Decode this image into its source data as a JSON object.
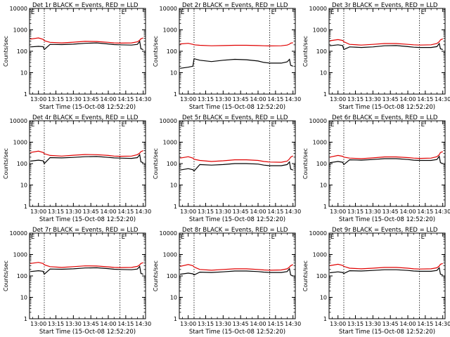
{
  "figure": {
    "xlabel": "Start Time (15-Oct-08 12:52:20)",
    "ylabel": "Counts/sec",
    "marker_label": "E"
  },
  "chart_data": [
    {
      "type": "line",
      "title": "Det 1r BLACK = Events, RED = LLD",
      "xlabel": "Start Time (15-Oct-08 12:52:20)",
      "ylabel": "Counts/sec",
      "y_scale": "log",
      "ylim": [
        1,
        10000
      ],
      "y_ticks": [
        "1",
        "10",
        "100",
        "1000",
        "10000"
      ],
      "x_ticks": [
        "13:00",
        "13:15",
        "13:30",
        "13:45",
        "14:00",
        "14:15",
        "14:30"
      ],
      "xlim": [
        "12:52:20",
        "14:32:00"
      ],
      "vertical_markers": [
        "13:05",
        "14:10"
      ],
      "x": [
        "12:53",
        "13:00",
        "13:04",
        "13:05",
        "13:10",
        "13:20",
        "13:30",
        "13:40",
        "13:50",
        "14:00",
        "14:05",
        "14:10",
        "14:20",
        "14:25",
        "14:27",
        "14:28",
        "14:30"
      ],
      "series": [
        {
          "color": "#000000",
          "values": [
            160,
            170,
            165,
            120,
            210,
            205,
            215,
            235,
            245,
            220,
            205,
            200,
            195,
            210,
            290,
            130,
            120
          ]
        },
        {
          "color": "#e00000",
          "values": [
            370,
            420,
            360,
            310,
            260,
            245,
            265,
            290,
            285,
            260,
            245,
            240,
            245,
            275,
            330,
            380,
            420
          ]
        }
      ]
    },
    {
      "type": "line",
      "title": "Det 2r BLACK = Events, RED = LLD",
      "xlabel": "Start Time (15-Oct-08 12:52:20)",
      "ylabel": "Counts/sec",
      "y_scale": "log",
      "ylim": [
        1,
        10000
      ],
      "y_ticks": [
        "1",
        "10",
        "100",
        "1000",
        "10000"
      ],
      "x_ticks": [
        "13:00",
        "13:15",
        "13:30",
        "13:45",
        "14:00",
        "14:15",
        "14:30"
      ],
      "xlim": [
        "12:52:20",
        "14:32:00"
      ],
      "vertical_markers": [
        "13:05",
        "14:10"
      ],
      "x": [
        "12:53",
        "13:00",
        "13:04",
        "13:05",
        "13:10",
        "13:20",
        "13:30",
        "13:40",
        "13:50",
        "14:00",
        "14:05",
        "14:10",
        "14:20",
        "14:25",
        "14:27",
        "14:28",
        "14:30"
      ],
      "series": [
        {
          "color": "#000000",
          "values": [
            16,
            18,
            20,
            45,
            38,
            33,
            38,
            42,
            40,
            35,
            30,
            28,
            28,
            32,
            42,
            22,
            20
          ]
        },
        {
          "color": "#e00000",
          "values": [
            220,
            235,
            210,
            200,
            190,
            180,
            185,
            190,
            190,
            185,
            180,
            178,
            180,
            195,
            215,
            240,
            250
          ]
        }
      ]
    },
    {
      "type": "line",
      "title": "Det 3r BLACK = Events, RED = LLD",
      "xlabel": "Start Time (15-Oct-08 12:52:20)",
      "ylabel": "Counts/sec",
      "y_scale": "log",
      "ylim": [
        1,
        10000
      ],
      "y_ticks": [
        "1",
        "10",
        "100",
        "1000",
        "10000"
      ],
      "x_ticks": [
        "13:00",
        "13:15",
        "13:30",
        "13:45",
        "14:00",
        "14:15",
        "14:30"
      ],
      "xlim": [
        "12:52:20",
        "14:32:00"
      ],
      "vertical_markers": [
        "13:05",
        "14:10"
      ],
      "x": [
        "12:53",
        "13:00",
        "13:04",
        "13:05",
        "13:10",
        "13:20",
        "13:30",
        "13:40",
        "13:50",
        "14:00",
        "14:05",
        "14:10",
        "14:20",
        "14:25",
        "14:27",
        "14:28",
        "14:30"
      ],
      "series": [
        {
          "color": "#000000",
          "values": [
            180,
            200,
            185,
            120,
            160,
            150,
            160,
            180,
            185,
            165,
            155,
            150,
            150,
            165,
            230,
            130,
            120
          ]
        },
        {
          "color": "#e00000",
          "values": [
            310,
            350,
            320,
            280,
            210,
            195,
            210,
            230,
            230,
            210,
            200,
            195,
            200,
            230,
            280,
            340,
            380
          ]
        }
      ]
    },
    {
      "type": "line",
      "title": "Det 4r BLACK = Events, RED = LLD",
      "xlabel": "Start Time (15-Oct-08 12:52:20)",
      "ylabel": "Counts/sec",
      "y_scale": "log",
      "ylim": [
        1,
        10000
      ],
      "y_ticks": [
        "1",
        "10",
        "100",
        "1000",
        "10000"
      ],
      "x_ticks": [
        "13:00",
        "13:15",
        "13:30",
        "13:45",
        "14:00",
        "14:15",
        "14:30"
      ],
      "xlim": [
        "12:52:20",
        "14:32:00"
      ],
      "vertical_markers": [
        "13:05",
        "14:10"
      ],
      "x": [
        "12:53",
        "13:00",
        "13:04",
        "13:05",
        "13:10",
        "13:20",
        "13:30",
        "13:40",
        "13:50",
        "14:00",
        "14:05",
        "14:10",
        "14:20",
        "14:25",
        "14:27",
        "14:28",
        "14:30"
      ],
      "series": [
        {
          "color": "#000000",
          "values": [
            130,
            145,
            135,
            100,
            190,
            185,
            195,
            210,
            215,
            195,
            185,
            180,
            175,
            190,
            260,
            120,
            110
          ]
        },
        {
          "color": "#e00000",
          "values": [
            330,
            380,
            330,
            290,
            240,
            225,
            245,
            265,
            260,
            240,
            225,
            220,
            225,
            260,
            310,
            360,
            400
          ]
        }
      ]
    },
    {
      "type": "line",
      "title": "Det 5r BLACK = Events, RED = LLD",
      "xlabel": "Start Time (15-Oct-08 12:52:20)",
      "ylabel": "Counts/sec",
      "y_scale": "log",
      "ylim": [
        1,
        10000
      ],
      "y_ticks": [
        "1",
        "10",
        "100",
        "1000",
        "10000"
      ],
      "x_ticks": [
        "13:00",
        "13:15",
        "13:30",
        "13:45",
        "14:00",
        "14:15",
        "14:30"
      ],
      "xlim": [
        "12:52:20",
        "14:32:00"
      ],
      "vertical_markers": [
        "13:05",
        "14:10"
      ],
      "x": [
        "12:53",
        "13:00",
        "13:04",
        "13:05",
        "13:10",
        "13:20",
        "13:30",
        "13:40",
        "13:50",
        "14:00",
        "14:05",
        "14:10",
        "14:20",
        "14:25",
        "14:27",
        "14:28",
        "14:30"
      ],
      "series": [
        {
          "color": "#000000",
          "values": [
            50,
            58,
            52,
            45,
            90,
            85,
            90,
            100,
            100,
            95,
            85,
            80,
            80,
            90,
            120,
            55,
            50
          ]
        },
        {
          "color": "#e00000",
          "values": [
            180,
            210,
            180,
            160,
            140,
            125,
            135,
            150,
            150,
            140,
            125,
            118,
            115,
            130,
            165,
            200,
            230
          ]
        }
      ]
    },
    {
      "type": "line",
      "title": "Det 6r BLACK = Events, RED = LLD",
      "xlabel": "Start Time (15-Oct-08 12:52:20)",
      "ylabel": "Counts/sec",
      "y_scale": "log",
      "ylim": [
        1,
        10000
      ],
      "y_ticks": [
        "1",
        "10",
        "100",
        "1000",
        "10000"
      ],
      "x_ticks": [
        "13:00",
        "13:15",
        "13:30",
        "13:45",
        "14:00",
        "14:15",
        "14:30"
      ],
      "xlim": [
        "12:52:20",
        "14:32:00"
      ],
      "vertical_markers": [
        "13:05",
        "14:10"
      ],
      "x": [
        "12:53",
        "13:00",
        "13:04",
        "13:05",
        "13:10",
        "13:20",
        "13:30",
        "13:40",
        "13:50",
        "14:00",
        "14:05",
        "14:10",
        "14:20",
        "14:25",
        "14:27",
        "14:28",
        "14:30"
      ],
      "series": [
        {
          "color": "#000000",
          "values": [
            110,
            125,
            115,
            90,
            150,
            145,
            155,
            170,
            170,
            155,
            145,
            140,
            140,
            155,
            220,
            110,
            100
          ]
        },
        {
          "color": "#e00000",
          "values": [
            200,
            240,
            220,
            200,
            180,
            170,
            185,
            205,
            205,
            190,
            180,
            175,
            180,
            210,
            260,
            330,
            360
          ]
        }
      ]
    },
    {
      "type": "line",
      "title": "Det 7r BLACK = Events, RED = LLD",
      "xlabel": "Start Time (15-Oct-08 12:52:20)",
      "ylabel": "Counts/sec",
      "y_scale": "log",
      "ylim": [
        1,
        10000
      ],
      "y_ticks": [
        "1",
        "10",
        "100",
        "1000",
        "10000"
      ],
      "x_ticks": [
        "13:00",
        "13:15",
        "13:30",
        "13:45",
        "14:00",
        "14:15",
        "14:30"
      ],
      "xlim": [
        "12:52:20",
        "14:32:00"
      ],
      "vertical_markers": [
        "13:05",
        "14:10"
      ],
      "x": [
        "12:53",
        "13:00",
        "13:04",
        "13:05",
        "13:10",
        "13:20",
        "13:30",
        "13:40",
        "13:50",
        "14:00",
        "14:05",
        "14:10",
        "14:20",
        "14:25",
        "14:27",
        "14:28",
        "14:30"
      ],
      "series": [
        {
          "color": "#000000",
          "values": [
            160,
            175,
            165,
            120,
            210,
            205,
            215,
            235,
            240,
            220,
            205,
            200,
            195,
            210,
            280,
            130,
            120
          ]
        },
        {
          "color": "#e00000",
          "values": [
            380,
            430,
            380,
            330,
            270,
            250,
            270,
            295,
            290,
            265,
            250,
            245,
            250,
            280,
            330,
            380,
            420
          ]
        }
      ]
    },
    {
      "type": "line",
      "title": "Det 8r BLACK = Events, RED = LLD",
      "xlabel": "Start Time (15-Oct-08 12:52:20)",
      "ylabel": "Counts/sec",
      "y_scale": "log",
      "ylim": [
        1,
        10000
      ],
      "y_ticks": [
        "1",
        "10",
        "100",
        "1000",
        "10000"
      ],
      "x_ticks": [
        "13:00",
        "13:15",
        "13:30",
        "13:45",
        "14:00",
        "14:15",
        "14:30"
      ],
      "xlim": [
        "12:52:20",
        "14:32:00"
      ],
      "vertical_markers": [
        "13:05",
        "14:10"
      ],
      "x": [
        "12:53",
        "13:00",
        "13:04",
        "13:05",
        "13:10",
        "13:20",
        "13:30",
        "13:40",
        "13:50",
        "14:00",
        "14:05",
        "14:10",
        "14:20",
        "14:25",
        "14:27",
        "14:28",
        "14:30"
      ],
      "series": [
        {
          "color": "#000000",
          "values": [
            120,
            135,
            125,
            110,
            150,
            145,
            155,
            170,
            170,
            160,
            150,
            145,
            145,
            160,
            220,
            110,
            100
          ]
        },
        {
          "color": "#e00000",
          "values": [
            280,
            340,
            300,
            260,
            200,
            185,
            200,
            215,
            215,
            200,
            190,
            185,
            190,
            215,
            260,
            300,
            340
          ]
        }
      ]
    },
    {
      "type": "line",
      "title": "Det 9r BLACK = Events, RED = LLD",
      "xlabel": "Start Time (15-Oct-08 12:52:20)",
      "ylabel": "Counts/sec",
      "y_scale": "log",
      "ylim": [
        1,
        10000
      ],
      "y_ticks": [
        "1",
        "10",
        "100",
        "1000",
        "10000"
      ],
      "x_ticks": [
        "13:00",
        "13:15",
        "13:30",
        "13:45",
        "14:00",
        "14:15",
        "14:30"
      ],
      "xlim": [
        "12:52:20",
        "14:32:00"
      ],
      "vertical_markers": [
        "13:05",
        "14:10"
      ],
      "x": [
        "12:53",
        "13:00",
        "13:04",
        "13:05",
        "13:10",
        "13:20",
        "13:30",
        "13:40",
        "13:50",
        "14:00",
        "14:05",
        "14:10",
        "14:20",
        "14:25",
        "14:27",
        "14:28",
        "14:30"
      ],
      "series": [
        {
          "color": "#000000",
          "values": [
            140,
            155,
            145,
            130,
            175,
            170,
            180,
            195,
            195,
            180,
            170,
            165,
            165,
            180,
            240,
            120,
            110
          ]
        },
        {
          "color": "#e00000",
          "values": [
            300,
            350,
            310,
            280,
            230,
            215,
            230,
            250,
            250,
            230,
            215,
            210,
            215,
            240,
            290,
            350,
            380
          ]
        }
      ]
    }
  ]
}
